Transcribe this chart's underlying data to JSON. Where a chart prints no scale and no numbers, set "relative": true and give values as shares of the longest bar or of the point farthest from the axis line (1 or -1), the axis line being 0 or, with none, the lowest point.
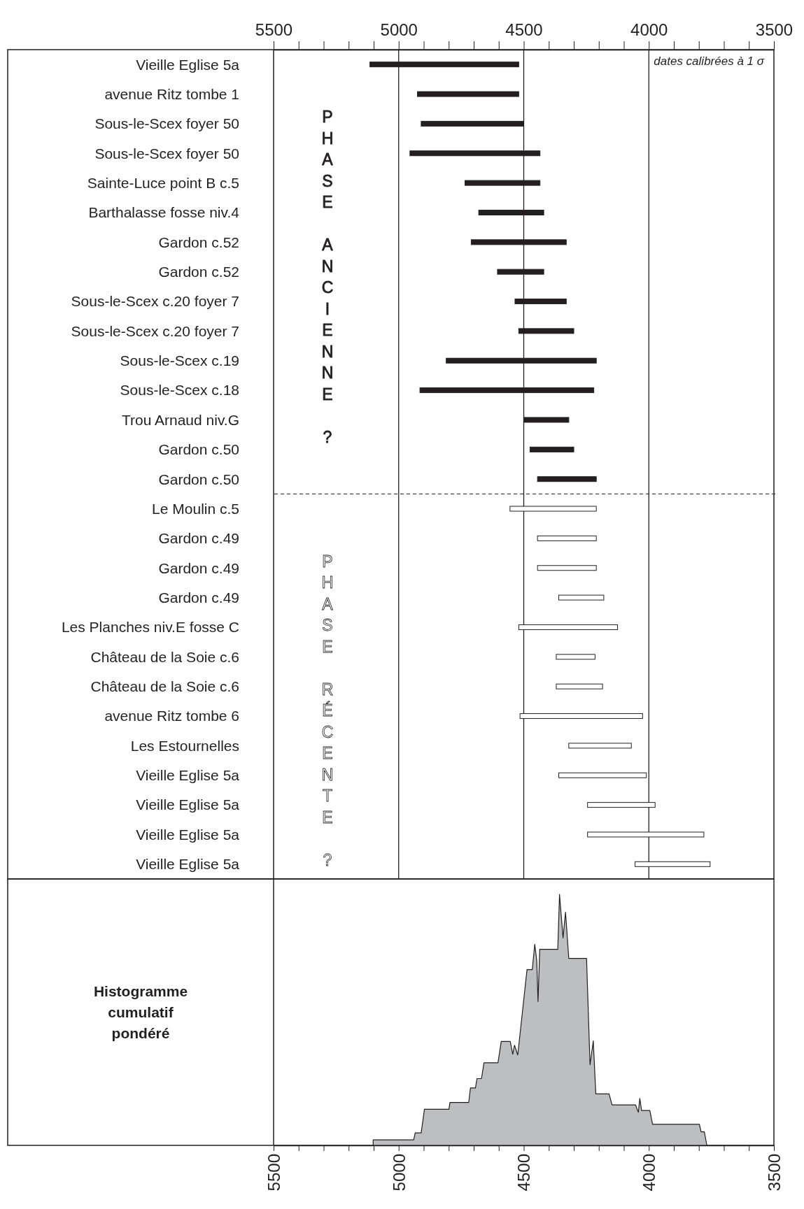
{
  "chart_data": [
    {
      "type": "bar",
      "orientation": "horizontal",
      "categories": [
        "Vieille Eglise 5a",
        "avenue Ritz tombe 1",
        "Sous-le-Scex foyer 50",
        "Sous-le-Scex foyer 50",
        "Sainte-Luce point B c.5",
        "Barthalasse fosse niv.4",
        "Gardon c.52",
        "Gardon c.52",
        "Sous-le-Scex c.20 foyer 7",
        "Sous-le-Scex c.20 foyer 7",
        "Sous-le-Scex c.19",
        "Sous-le-Scex c.18",
        "Trou Arnaud niv.G",
        "Gardon c.50",
        "Gardon c.50",
        "Le Moulin c.5",
        "Gardon c.49",
        "Gardon c.49",
        "Gardon c.49",
        "Les Planches niv.E fosse C",
        "Château de la Soie c.6",
        "Château de la Soie c.6",
        "avenue Ritz tombe 6",
        "Les Estournelles",
        "Vieille Eglise 5a",
        "Vieille Eglise 5a",
        "Vieille Eglise 5a",
        "Vieille Eglise 5a"
      ],
      "series": [
        {
          "color": "#231f20",
          "base": [
            4520,
            4520,
            4500,
            4435,
            4435,
            4420,
            4330,
            4420,
            4330,
            4300,
            4210,
            4220,
            4320,
            4300,
            4210,
            null,
            null,
            null,
            null,
            null,
            null,
            null,
            null,
            null,
            null,
            null,
            null,
            null
          ],
          "values": [
            595,
            405,
            410,
            520,
            300,
            260,
            380,
            185,
            205,
            220,
            600,
            695,
            180,
            175,
            235,
            null,
            null,
            null,
            null,
            null,
            null,
            null,
            null,
            null,
            null,
            null,
            null,
            null
          ]
        },
        {
          "color": "#ffffff",
          "base": [
            null,
            null,
            null,
            null,
            null,
            null,
            null,
            null,
            null,
            null,
            null,
            null,
            null,
            null,
            null,
            4210,
            4210,
            4210,
            4180,
            4125,
            4215,
            4185,
            4025,
            4070,
            4010,
            3975,
            3780,
            3755
          ],
          "values": [
            null,
            null,
            null,
            null,
            null,
            null,
            null,
            null,
            null,
            null,
            null,
            null,
            null,
            null,
            null,
            345,
            235,
            235,
            180,
            395,
            155,
            185,
            490,
            250,
            350,
            270,
            465,
            300
          ]
        }
      ],
      "xlim": [
        5500,
        3500
      ],
      "xticks": [
        5500,
        {
          "value": 5400,
          "label": null
        },
        {
          "value": 5300,
          "label": null
        },
        {
          "value": 5200,
          "label": null
        },
        {
          "value": 5100,
          "label": null
        },
        5000,
        {
          "value": 4900,
          "label": null
        },
        {
          "value": 4800,
          "label": null
        },
        {
          "value": 4700,
          "label": null
        },
        {
          "value": 4600,
          "label": null
        },
        4500,
        {
          "value": 4400,
          "label": null
        },
        {
          "value": 4300,
          "label": null
        },
        {
          "value": 4200,
          "label": null
        },
        {
          "value": 4100,
          "label": null
        },
        4000,
        {
          "value": 3900,
          "label": null
        },
        {
          "value": 3800,
          "label": null
        },
        {
          "value": 3700,
          "label": null
        },
        {
          "value": 3600,
          "label": null
        },
        3500
      ],
      "ref_lines": [
        {
          "axis": "x",
          "value": 5000,
          "color": "#231f20"
        },
        {
          "axis": "x",
          "value": 4500,
          "color": "#231f20"
        },
        {
          "axis": "x",
          "value": 4000,
          "color": "#231f20"
        }
      ],
      "annotations": [
        "dates calibrées à 1 σ",
        "PHASE ANCIENNE ?",
        "PHASE RÉCENTE ?"
      ]
    },
    {
      "type": "area",
      "title": "Histogramme cumulatif pondéré",
      "relative": true,
      "xlim": [
        5500,
        3500
      ],
      "xticks": [
        5500,
        {
          "value": 5400,
          "label": null
        },
        {
          "value": 5300,
          "label": null
        },
        {
          "value": 5200,
          "label": null
        },
        {
          "value": 5100,
          "label": null
        },
        5000,
        {
          "value": 4900,
          "label": null
        },
        {
          "value": 4800,
          "label": null
        },
        {
          "value": 4700,
          "label": null
        },
        {
          "value": 4600,
          "label": null
        },
        4500,
        {
          "value": 4400,
          "label": null
        },
        {
          "value": 4300,
          "label": null
        },
        {
          "value": 4200,
          "label": null
        },
        {
          "value": 4100,
          "label": null
        },
        4000,
        {
          "value": 3900,
          "label": null
        },
        {
          "value": 3800,
          "label": null
        },
        {
          "value": 3700,
          "label": null
        },
        {
          "value": 3600,
          "label": null
        },
        3500
      ],
      "series": [
        {
          "color": "#bcbec0",
          "x": [
            5102,
            5102,
            4940,
            4934,
            4910,
            4897,
            4799,
            4795,
            4720,
            4713,
            4693,
            4687,
            4669,
            4659,
            4603,
            4590,
            4554,
            4544,
            4537,
            4524,
            4487,
            4466,
            4456,
            4448,
            4443,
            4436,
            4364,
            4357,
            4343,
            4333,
            4320,
            4249,
            4235,
            4222,
            4212,
            4159,
            4147,
            4053,
            4042,
            4036,
            4029,
            3996,
            3985,
            3798,
            3791,
            3778,
            3768
          ],
          "values": [
            0,
            0.022,
            0.022,
            0.05,
            0.05,
            0.144,
            0.144,
            0.171,
            0.171,
            0.229,
            0.229,
            0.266,
            0.266,
            0.329,
            0.329,
            0.414,
            0.414,
            0.363,
            0.399,
            0.36,
            0.7,
            0.7,
            0.801,
            0.736,
            0.573,
            0.781,
            0.781,
            1,
            0.827,
            0.929,
            0.745,
            0.745,
            0.321,
            0.416,
            0.205,
            0.205,
            0.161,
            0.161,
            0.132,
            0.187,
            0.139,
            0.139,
            0.084,
            0.084,
            0.054,
            0.054,
            0
          ]
        }
      ]
    }
  ]
}
